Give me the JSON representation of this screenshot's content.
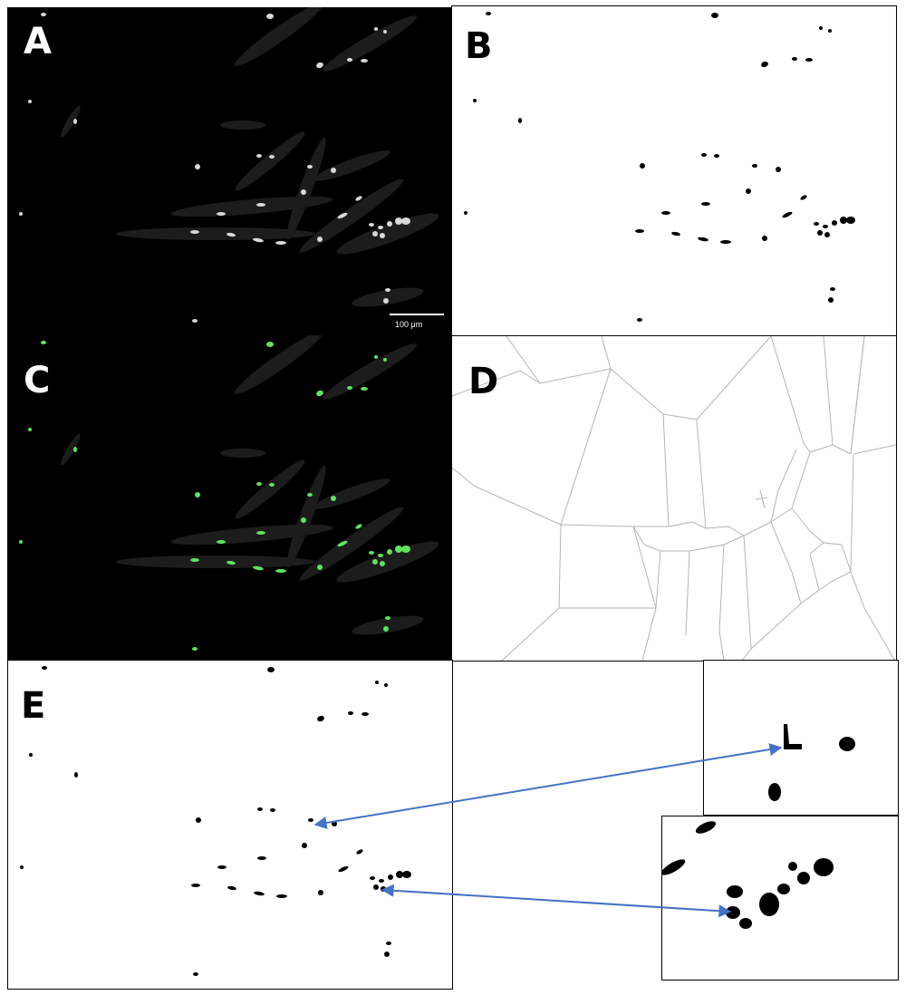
{
  "figure": {
    "panels": [
      {
        "id": "A",
        "label": "A",
        "content": "grayscale fluorescence micrograph of elongated cells with bright nuclei"
      },
      {
        "id": "B",
        "label": "B",
        "content": "binary mask of detected nuclei"
      },
      {
        "id": "C",
        "label": "C",
        "content": "micrograph with detected nuclei overlaid in green"
      },
      {
        "id": "D",
        "label": "D",
        "content": "Voronoi tessellation of nuclei positions"
      },
      {
        "id": "E",
        "label": "E",
        "content": "binary nuclei mask with magnified insets"
      }
    ],
    "scale_bar": {
      "text": "100 μm"
    },
    "colors": {
      "background_dark": "#000000",
      "nucleus_gray": "#d8d8d8",
      "nucleus_green": "#5fe35f",
      "mask": "#000000",
      "voronoi_edge": "#b4b4b4",
      "arrow": "#4472c4"
    }
  }
}
